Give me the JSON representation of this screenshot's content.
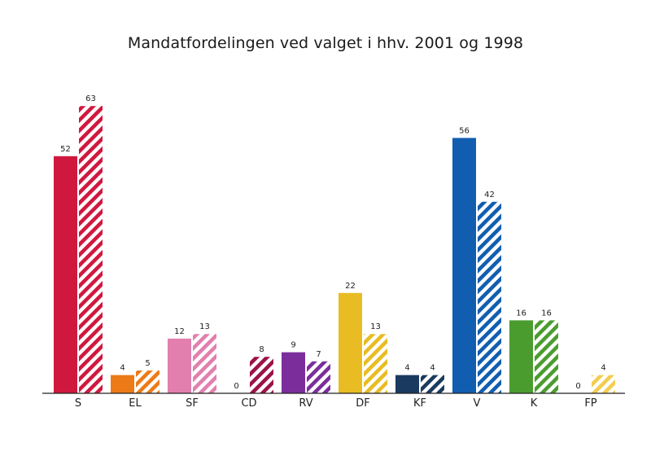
{
  "chart_data": {
    "type": "bar",
    "title": "Mandatfordelingen ved valget i hhv. 2001 og 1998",
    "xlabel": "",
    "ylabel": "",
    "ylim": [
      0,
      63
    ],
    "grid": false,
    "legend": "none",
    "categories": [
      "S",
      "EL",
      "SF",
      "CD",
      "RV",
      "DF",
      "KF",
      "V",
      "K",
      "FP"
    ],
    "colors": [
      "#d0183f",
      "#ec7b17",
      "#e27fae",
      "#9b1246",
      "#7b2e9b",
      "#e8bc22",
      "#1b3a5f",
      "#115eb0",
      "#4a9c2f",
      "#f3cd4e"
    ],
    "series": [
      {
        "values": [
          52,
          4,
          12,
          0,
          9,
          22,
          4,
          56,
          16,
          0
        ],
        "style": "solid"
      },
      {
        "values": [
          63,
          5,
          13,
          8,
          7,
          13,
          4,
          42,
          16,
          4
        ],
        "style": "hatched"
      }
    ]
  }
}
